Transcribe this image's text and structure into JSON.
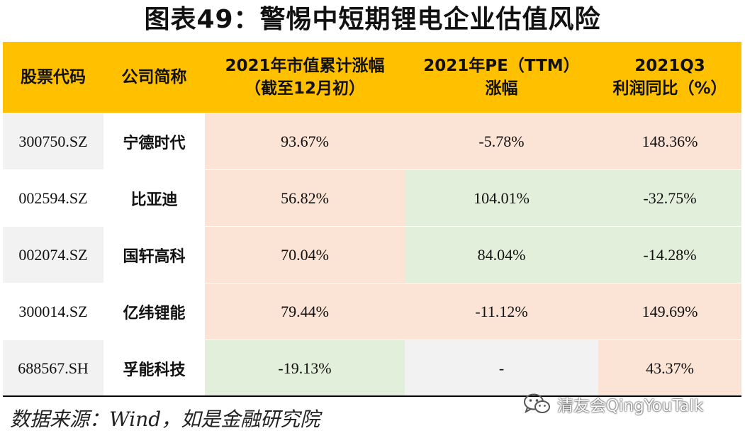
{
  "title": "图表49：警惕中短期锂电企业估值风险",
  "table": {
    "headers": [
      {
        "line1": "股票代码",
        "line2": ""
      },
      {
        "line1": "公司简称",
        "line2": ""
      },
      {
        "line1": "2021年市值累计涨幅",
        "line2": "（截至12月初）"
      },
      {
        "line1": "2021年PE（TTM）",
        "line2": "涨幅"
      },
      {
        "line1": "2021Q3",
        "line2": "利润同比（%）"
      }
    ],
    "rows": [
      {
        "code": "300750.SZ",
        "name": "宁德时代",
        "mcap": "93.67%",
        "pe": "-5.78%",
        "profit": "148.36%"
      },
      {
        "code": "002594.SZ",
        "name": "比亚迪",
        "mcap": "56.82%",
        "pe": "104.01%",
        "profit": "-32.75%"
      },
      {
        "code": "002074.SZ",
        "name": "国轩高科",
        "mcap": "70.04%",
        "pe": "84.04%",
        "profit": "-14.28%"
      },
      {
        "code": "300014.SZ",
        "name": "亿纬锂能",
        "mcap": "79.44%",
        "pe": "-11.12%",
        "profit": "149.69%"
      },
      {
        "code": "688567.SH",
        "name": "孚能科技",
        "mcap": "-19.13%",
        "pe": "-",
        "profit": "43.37%"
      }
    ]
  },
  "source": "数据来源：Wind，如是金融研究院",
  "watermark": {
    "icon": "wechat-icon",
    "text": "清友会QingYouTalk"
  },
  "colors": {
    "header": "#ffc000",
    "pink": "#fbe3d6",
    "green": "#e2efda",
    "grey": "#f2f2f2"
  }
}
